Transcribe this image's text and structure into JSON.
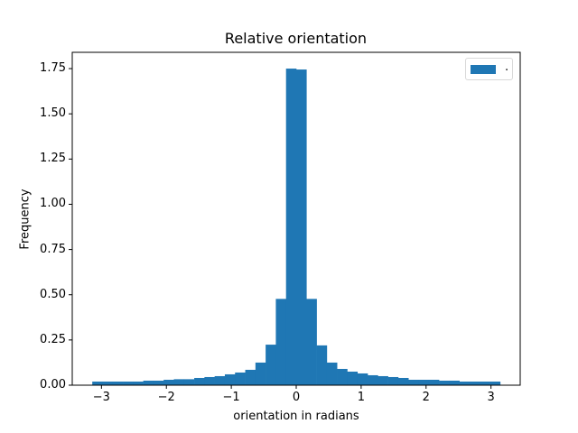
{
  "chart_data": {
    "type": "bar",
    "title": "Relative orientation",
    "xlabel": "orientation in radians",
    "ylabel": "Frequency",
    "xlim": [
      -3.45,
      3.45
    ],
    "ylim": [
      0,
      1.84
    ],
    "x_ticks": [
      -3,
      -2,
      -1,
      0,
      1,
      2,
      3
    ],
    "x_tick_labels": [
      "−3",
      "−2",
      "−1",
      "0",
      "1",
      "2",
      "3"
    ],
    "y_ticks": [
      0.0,
      0.25,
      0.5,
      0.75,
      1.0,
      1.25,
      1.5,
      1.75
    ],
    "y_tick_labels": [
      "0.00",
      "0.25",
      "0.50",
      "0.75",
      "1.00",
      "1.25",
      "1.50",
      "1.75"
    ],
    "grid": false,
    "legend": {
      "position": "upper right",
      "entries": [
        "."
      ]
    },
    "bin_range": [
      -3.14159,
      3.14159
    ],
    "n_bins": 40,
    "values": [
      0.02,
      0.02,
      0.02,
      0.02,
      0.02,
      0.025,
      0.025,
      0.03,
      0.033,
      0.033,
      0.04,
      0.045,
      0.05,
      0.06,
      0.07,
      0.085,
      0.125,
      0.224,
      0.477,
      1.75,
      1.745,
      0.477,
      0.22,
      0.125,
      0.09,
      0.075,
      0.065,
      0.055,
      0.05,
      0.045,
      0.04,
      0.03,
      0.03,
      0.03,
      0.025,
      0.025,
      0.02,
      0.02,
      0.02,
      0.02
    ],
    "color": "#1f77b4"
  },
  "labels": {
    "title": "Relative orientation",
    "xlabel": "orientation in radians",
    "ylabel": "Frequency",
    "legend_label": "."
  }
}
